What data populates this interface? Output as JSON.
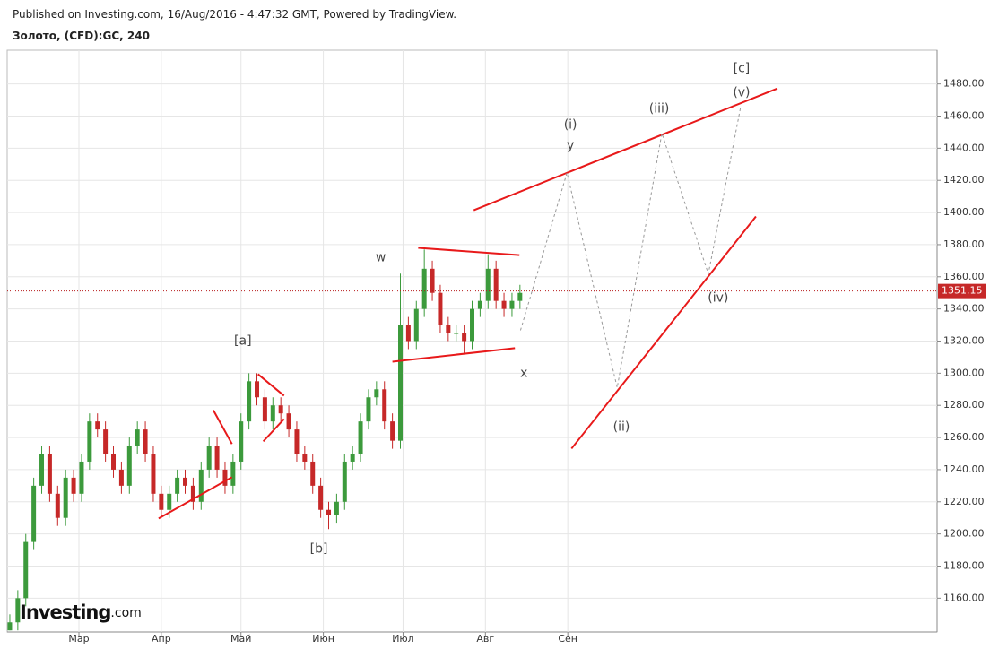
{
  "header": {
    "published": "Published on Investing.com, 16/Aug/2016 - 4:47:32 GMT, Powered by TradingView.",
    "symbol": "Золото, (CFD):GC, 240"
  },
  "logo": {
    "brand": "Investing",
    "suffix": ".com"
  },
  "chart_data": {
    "type": "candlestick",
    "x": [
      35,
      38,
      41,
      44,
      47,
      50,
      53,
      56,
      59,
      62,
      65,
      68,
      71,
      74,
      77,
      80,
      83,
      86,
      89,
      92,
      95,
      98,
      101,
      104,
      107,
      110,
      113,
      116,
      119,
      122,
      125,
      128,
      131,
      134,
      137,
      140,
      143,
      146,
      149,
      152,
      155,
      158,
      161,
      164,
      167,
      170,
      173,
      176,
      179,
      182,
      185,
      188,
      191,
      194,
      197,
      200,
      203,
      206,
      209,
      212,
      215,
      218,
      221,
      224,
      227
    ],
    "open": [
      1140,
      1145,
      1160,
      1195,
      1230,
      1250,
      1225,
      1210,
      1235,
      1225,
      1245,
      1270,
      1265,
      1250,
      1240,
      1230,
      1255,
      1265,
      1250,
      1225,
      1215,
      1225,
      1235,
      1230,
      1220,
      1240,
      1255,
      1240,
      1230,
      1245,
      1270,
      1295,
      1285,
      1270,
      1280,
      1275,
      1265,
      1250,
      1245,
      1230,
      1215,
      1212,
      1220,
      1245,
      1250,
      1270,
      1285,
      1290,
      1270,
      1258,
      1330,
      1320,
      1340,
      1365,
      1350,
      1330,
      1325,
      1325,
      1320,
      1340,
      1345,
      1365,
      1345,
      1340,
      1345
    ],
    "high": [
      1150,
      1165,
      1200,
      1235,
      1255,
      1255,
      1230,
      1240,
      1240,
      1250,
      1275,
      1275,
      1270,
      1255,
      1245,
      1260,
      1270,
      1270,
      1255,
      1230,
      1230,
      1240,
      1240,
      1235,
      1245,
      1260,
      1260,
      1245,
      1250,
      1275,
      1300,
      1300,
      1290,
      1285,
      1285,
      1280,
      1270,
      1255,
      1250,
      1235,
      1220,
      1225,
      1250,
      1255,
      1275,
      1290,
      1295,
      1295,
      1275,
      1362,
      1335,
      1345,
      1377,
      1370,
      1355,
      1335,
      1330,
      1330,
      1345,
      1350,
      1374,
      1370,
      1350,
      1350,
      1355
    ],
    "low": [
      1140,
      1140,
      1155,
      1190,
      1225,
      1220,
      1205,
      1205,
      1220,
      1220,
      1240,
      1260,
      1245,
      1235,
      1225,
      1225,
      1250,
      1245,
      1220,
      1210,
      1210,
      1220,
      1225,
      1215,
      1215,
      1235,
      1235,
      1225,
      1225,
      1240,
      1265,
      1280,
      1265,
      1265,
      1270,
      1260,
      1245,
      1240,
      1225,
      1210,
      1203,
      1207,
      1215,
      1240,
      1245,
      1265,
      1280,
      1265,
      1253,
      1253,
      1315,
      1315,
      1335,
      1345,
      1325,
      1320,
      1320,
      1312,
      1315,
      1335,
      1340,
      1340,
      1335,
      1335,
      1340
    ],
    "close": [
      1145,
      1160,
      1195,
      1230,
      1250,
      1225,
      1210,
      1235,
      1225,
      1245,
      1270,
      1265,
      1250,
      1240,
      1230,
      1255,
      1265,
      1250,
      1225,
      1215,
      1225,
      1235,
      1230,
      1220,
      1240,
      1255,
      1240,
      1230,
      1245,
      1270,
      1295,
      1285,
      1270,
      1280,
      1275,
      1265,
      1250,
      1245,
      1230,
      1215,
      1212,
      1220,
      1245,
      1250,
      1270,
      1285,
      1290,
      1270,
      1258,
      1330,
      1320,
      1340,
      1365,
      1350,
      1330,
      1325,
      1325,
      1320,
      1340,
      1345,
      1365,
      1345,
      1340,
      1345,
      1350
    ],
    "up_color": "#3c9a3c",
    "down_color": "#c62828",
    "xlim": [
      34,
      384
    ],
    "xticks": [
      {
        "value": 61,
        "label": "Мар"
      },
      {
        "value": 92,
        "label": "Апр"
      },
      {
        "value": 122,
        "label": "Май"
      },
      {
        "value": 153,
        "label": "Июн"
      },
      {
        "value": 183,
        "label": "Июл"
      },
      {
        "value": 214,
        "label": "Авг"
      },
      {
        "value": 245,
        "label": "Сен"
      }
    ],
    "ylim": [
      1139,
      1501
    ],
    "yticks": [
      {
        "value": 1160,
        "label": "1160.00"
      },
      {
        "value": 1180,
        "label": "1180.00"
      },
      {
        "value": 1200,
        "label": "1200.00"
      },
      {
        "value": 1220,
        "label": "1220.00"
      },
      {
        "value": 1240,
        "label": "1240.00"
      },
      {
        "value": 1260,
        "label": "1260.00"
      },
      {
        "value": 1280,
        "label": "1280.00"
      },
      {
        "value": 1300,
        "label": "1300.00"
      },
      {
        "value": 1320,
        "label": "1320.00"
      },
      {
        "value": 1340,
        "label": "1340.00"
      },
      {
        "value": 1360,
        "label": "1360.00"
      },
      {
        "value": 1380,
        "label": "1380.00"
      },
      {
        "value": 1400,
        "label": "1400.00"
      },
      {
        "value": 1420,
        "label": "1420.00"
      },
      {
        "value": 1440,
        "label": "1440.00"
      },
      {
        "value": 1460,
        "label": "1460.00"
      },
      {
        "value": 1480,
        "label": "1480.00"
      }
    ],
    "grid": true,
    "current_price": 1351.15,
    "trendline_color": "#e8191a",
    "trendlines": [
      [
        91,
        1209.6,
        118.6,
        1235.3
      ],
      [
        111.6,
        1277,
        118.6,
        1256
      ],
      [
        128.4,
        1299.4,
        138.2,
        1286
      ],
      [
        130.4,
        1257.6,
        138.2,
        1271.5
      ],
      [
        188.7,
        1378,
        226.8,
        1373.5
      ],
      [
        179,
        1307.2,
        225.1,
        1315.6
      ],
      [
        209.6,
        1401.4,
        323.9,
        1477.2
      ],
      [
        246.4,
        1253.1,
        315.8,
        1397.5
      ]
    ],
    "projection": {
      "x": [
        227.2,
        244.7,
        263.6,
        280.4,
        297.9,
        310.1
      ],
      "values": [
        1326.7,
        1424.8,
        1291,
        1449.3,
        1361.8,
        1466
      ]
    },
    "annotations": [
      {
        "text": "[a]",
        "x": 122.7,
        "y": 1320
      },
      {
        "text": "[b]",
        "x": 151.3,
        "y": 1190.7
      },
      {
        "text": "w",
        "x": 174.6,
        "y": 1372
      },
      {
        "text": "x",
        "x": 228.5,
        "y": 1300
      },
      {
        "text": "y",
        "x": 246,
        "y": 1441.5
      },
      {
        "text": "(i)",
        "x": 246,
        "y": 1454.4
      },
      {
        "text": "(ii)",
        "x": 265.2,
        "y": 1266.5
      },
      {
        "text": "(iii)",
        "x": 279.4,
        "y": 1464.4
      },
      {
        "text": "(iv)",
        "x": 301.6,
        "y": 1346.8
      },
      {
        "text": "(v)",
        "x": 310.4,
        "y": 1474.4
      },
      {
        "text": "[c]",
        "x": 310.4,
        "y": 1489.5
      }
    ]
  }
}
